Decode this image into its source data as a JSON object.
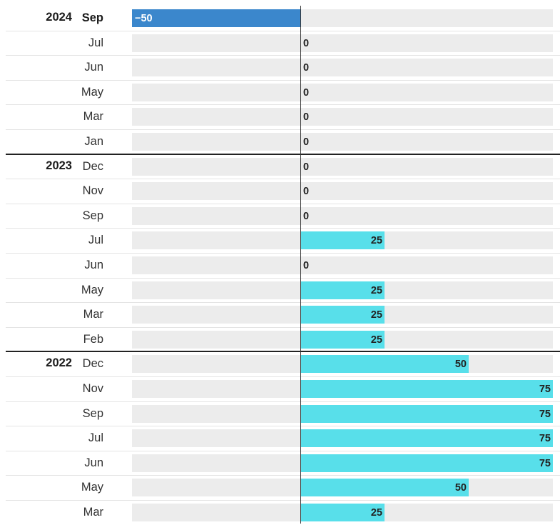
{
  "chart_data": {
    "type": "bar",
    "orientation": "horizontal",
    "xlim": [
      -50,
      75
    ],
    "colors": {
      "positive": "#58dfea",
      "negative": "#3b87cc",
      "track": "#ececec"
    },
    "groups": [
      {
        "year": "2024",
        "rows": [
          {
            "month": "Sep",
            "value": -50,
            "label": "−50"
          },
          {
            "month": "Jul",
            "value": 0,
            "label": "0"
          },
          {
            "month": "Jun",
            "value": 0,
            "label": "0"
          },
          {
            "month": "May",
            "value": 0,
            "label": "0"
          },
          {
            "month": "Mar",
            "value": 0,
            "label": "0"
          },
          {
            "month": "Jan",
            "value": 0,
            "label": "0"
          }
        ]
      },
      {
        "year": "2023",
        "rows": [
          {
            "month": "Dec",
            "value": 0,
            "label": "0"
          },
          {
            "month": "Nov",
            "value": 0,
            "label": "0"
          },
          {
            "month": "Sep",
            "value": 0,
            "label": "0"
          },
          {
            "month": "Jul",
            "value": 25,
            "label": "25"
          },
          {
            "month": "Jun",
            "value": 0,
            "label": "0"
          },
          {
            "month": "May",
            "value": 25,
            "label": "25"
          },
          {
            "month": "Mar",
            "value": 25,
            "label": "25"
          },
          {
            "month": "Feb",
            "value": 25,
            "label": "25"
          }
        ]
      },
      {
        "year": "2022",
        "rows": [
          {
            "month": "Dec",
            "value": 50,
            "label": "50"
          },
          {
            "month": "Nov",
            "value": 75,
            "label": "75"
          },
          {
            "month": "Sep",
            "value": 75,
            "label": "75"
          },
          {
            "month": "Jul",
            "value": 75,
            "label": "75"
          },
          {
            "month": "Jun",
            "value": 75,
            "label": "75"
          },
          {
            "month": "May",
            "value": 50,
            "label": "50"
          },
          {
            "month": "Mar",
            "value": 25,
            "label": "25"
          }
        ]
      }
    ]
  }
}
